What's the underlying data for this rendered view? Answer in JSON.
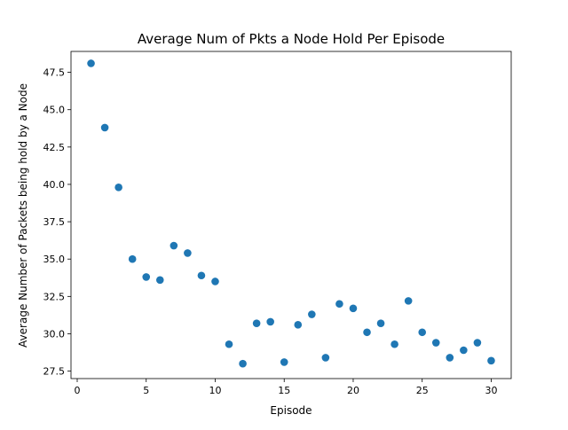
{
  "chart_data": {
    "type": "scatter",
    "title": "Average Num of Pkts a Node Hold Per Episode",
    "xlabel": "Episode",
    "ylabel": "Average Number of Packets being hold by a Node",
    "xlim": [
      -0.45,
      31.45
    ],
    "ylim": [
      27.0,
      48.9
    ],
    "x_ticks": [
      0,
      5,
      10,
      15,
      20,
      25,
      30
    ],
    "x_tick_labels": [
      "0",
      "5",
      "10",
      "15",
      "20",
      "25",
      "30"
    ],
    "y_ticks": [
      27.5,
      30.0,
      32.5,
      35.0,
      37.5,
      40.0,
      42.5,
      45.0,
      47.5
    ],
    "y_tick_labels": [
      "27.5",
      "30.0",
      "32.5",
      "35.0",
      "37.5",
      "40.0",
      "42.5",
      "45.0",
      "47.5"
    ],
    "grid": false,
    "marker_color": "#1f77b4",
    "x": [
      1,
      2,
      3,
      4,
      5,
      6,
      7,
      8,
      9,
      10,
      11,
      12,
      13,
      14,
      15,
      16,
      17,
      18,
      19,
      20,
      21,
      22,
      23,
      24,
      25,
      26,
      27,
      28,
      29,
      30
    ],
    "y": [
      48.1,
      43.8,
      39.8,
      35.0,
      33.8,
      33.6,
      35.9,
      35.4,
      33.9,
      33.5,
      29.3,
      28.0,
      30.7,
      30.8,
      28.1,
      30.6,
      31.3,
      28.4,
      32.0,
      31.7,
      30.1,
      30.7,
      29.3,
      32.2,
      30.1,
      29.4,
      28.4,
      28.9,
      29.4,
      28.2
    ]
  }
}
